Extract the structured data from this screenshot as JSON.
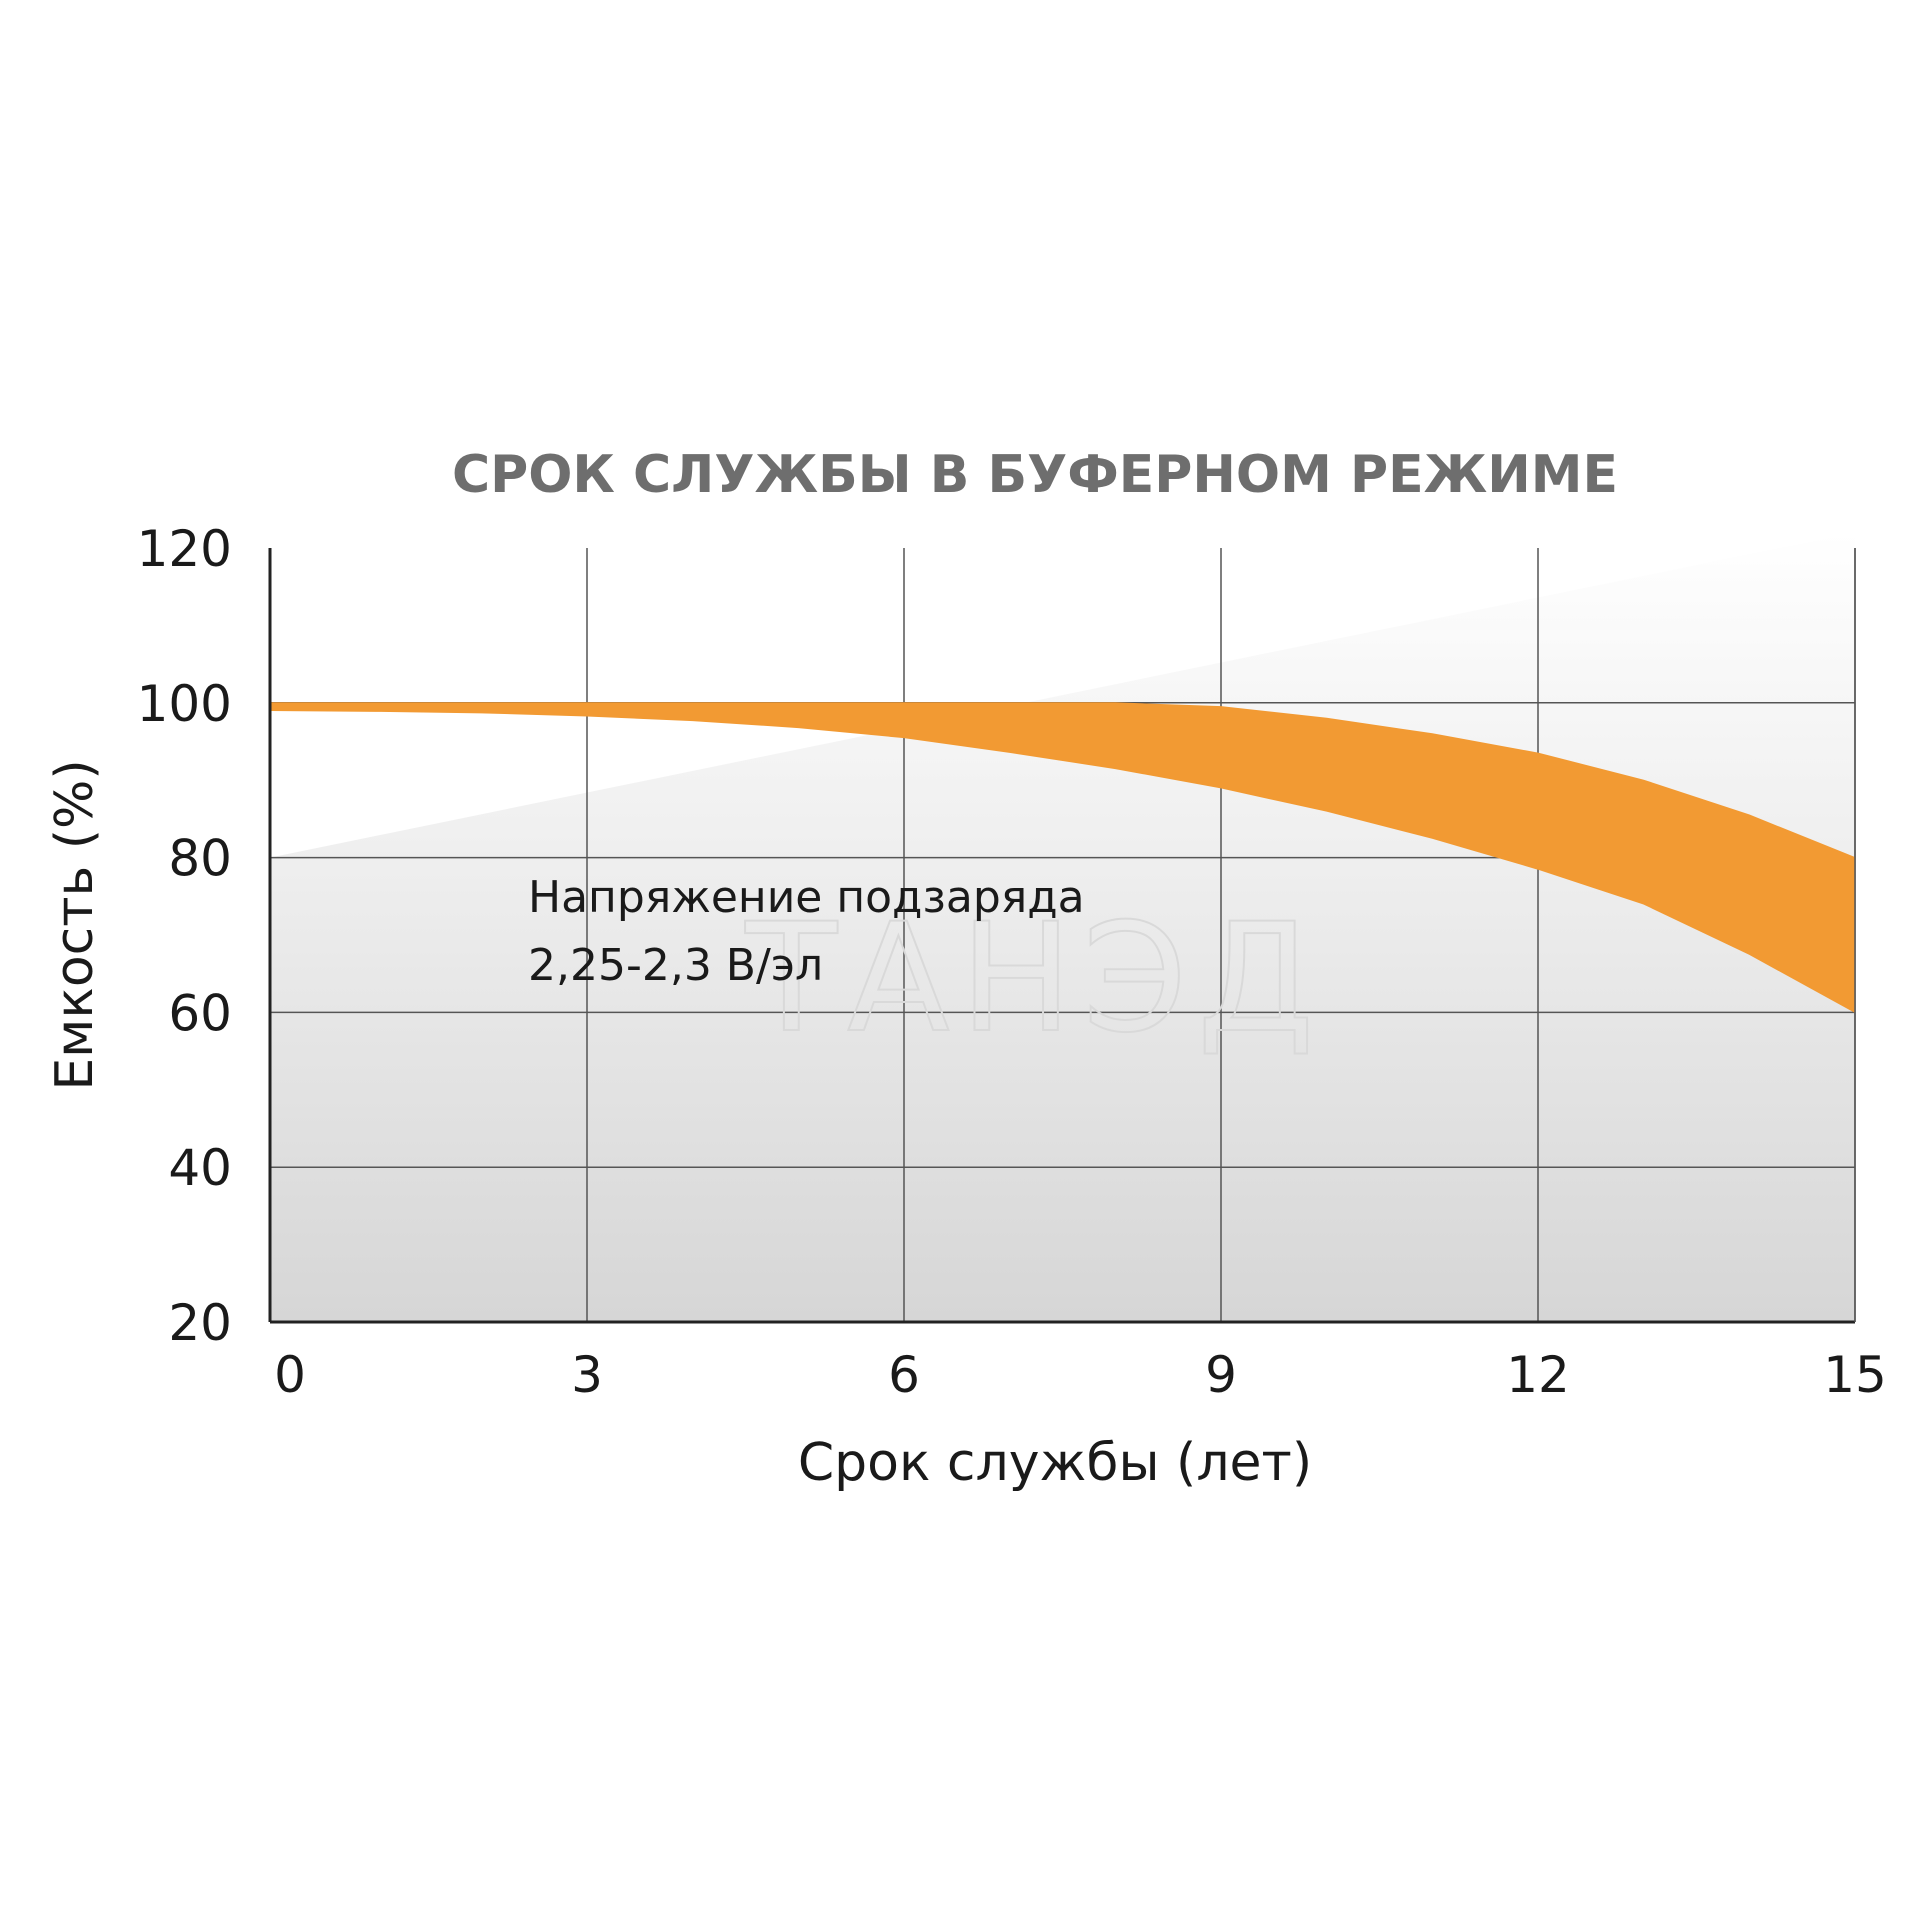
{
  "watermark": "ТАНЭД",
  "chart_data": {
    "type": "area",
    "title": "СРОК СЛУЖБЫ В БУФЕРНОМ РЕЖИМЕ",
    "xlabel": "Срок службы (лет)",
    "ylabel": "Емкость (%)",
    "xlim": [
      0,
      15
    ],
    "ylim": [
      20,
      120
    ],
    "xticks": [
      "0",
      "3",
      "6",
      "9",
      "12",
      "15"
    ],
    "xtick_values": [
      0,
      3,
      6,
      9,
      12,
      15
    ],
    "yticks": [
      "120",
      "100",
      "80",
      "60",
      "40",
      "20"
    ],
    "ytick_values": [
      120,
      100,
      80,
      60,
      40,
      20
    ],
    "grid": true,
    "annotation": [
      "Напряжение подзаряда",
      "2,25-2,3 В/эл"
    ],
    "band_color": "#F29A33",
    "series": [
      {
        "x": [
          0,
          1,
          2,
          3,
          4,
          5,
          6,
          7,
          8,
          9,
          10,
          11,
          12,
          13,
          14,
          15
        ],
        "values": [
          100,
          100,
          100,
          100,
          100,
          100,
          100,
          100,
          100,
          99.5,
          98,
          96,
          93.5,
          90,
          85.5,
          80
        ]
      },
      {
        "x": [
          0,
          1,
          2,
          3,
          4,
          5,
          6,
          7,
          8,
          9,
          10,
          11,
          12,
          13,
          14,
          15
        ],
        "values": [
          99,
          98.9,
          98.7,
          98.3,
          97.7,
          96.8,
          95.5,
          93.6,
          91.5,
          89,
          86,
          82.5,
          78.5,
          74,
          67.5,
          60
        ]
      }
    ]
  }
}
